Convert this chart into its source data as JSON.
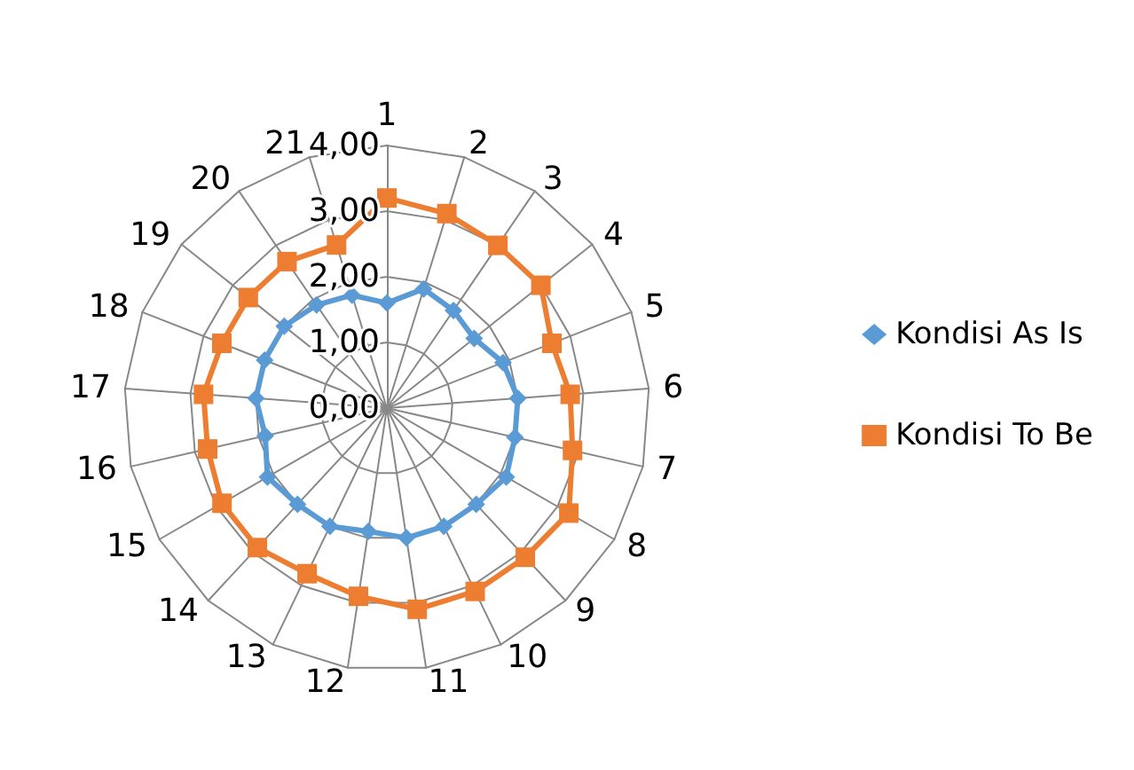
{
  "chart_data": {
    "type": "radar",
    "categories": [
      "1",
      "2",
      "3",
      "4",
      "5",
      "6",
      "7",
      "8",
      "9",
      "10",
      "11",
      "12",
      "13",
      "14",
      "15",
      "16",
      "17",
      "18",
      "19",
      "20",
      "21"
    ],
    "ylim": [
      0,
      4
    ],
    "yticks": [
      {
        "value": 0,
        "label": "0,00"
      },
      {
        "value": 1,
        "label": "1,00"
      },
      {
        "value": 2,
        "label": "2,00"
      },
      {
        "value": 3,
        "label": "3,00"
      },
      {
        "value": 4,
        "label": "4,00"
      }
    ],
    "legend": "right",
    "series": [
      {
        "name": "Kondisi As Is",
        "color": "#5b9bd5",
        "marker": "diamond",
        "values": [
          1.6,
          1.9,
          1.8,
          1.7,
          1.9,
          2.0,
          2.0,
          2.1,
          2.0,
          2.0,
          2.0,
          1.9,
          2.0,
          2.0,
          2.1,
          1.9,
          2.0,
          2.0,
          2.0,
          1.9,
          1.8
        ]
      },
      {
        "name": "Kondisi To Be",
        "color": "#ed7d31",
        "marker": "square",
        "values": [
          3.2,
          3.1,
          3.0,
          3.0,
          2.7,
          2.8,
          2.9,
          3.2,
          3.1,
          3.1,
          3.1,
          2.9,
          2.8,
          2.9,
          2.9,
          2.8,
          2.8,
          2.7,
          2.7,
          2.7,
          2.6
        ]
      }
    ]
  }
}
